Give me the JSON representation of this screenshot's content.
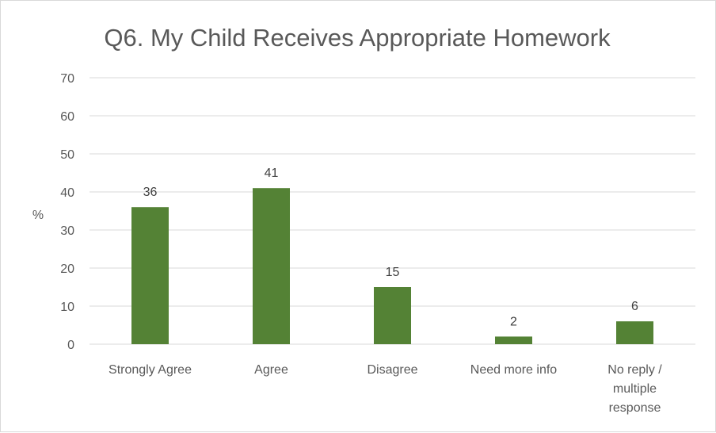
{
  "chart_data": {
    "type": "bar",
    "title": "Q6. My Child Receives Appropriate Homework",
    "ylabel": "%",
    "xlabel": "",
    "categories": [
      [
        "Strongly Agree"
      ],
      [
        "Agree"
      ],
      [
        "Disagree"
      ],
      [
        "Need more info"
      ],
      [
        "No reply /",
        "multiple",
        "response"
      ]
    ],
    "values": [
      36,
      41,
      15,
      2,
      6
    ],
    "ylim": [
      0,
      70
    ],
    "yticks": [
      0,
      10,
      20,
      30,
      40,
      50,
      60,
      70
    ],
    "grid": true,
    "legend": "none",
    "colors": {
      "bar": "#548235",
      "grid": "#d9d9d9",
      "text": "#595959"
    }
  }
}
